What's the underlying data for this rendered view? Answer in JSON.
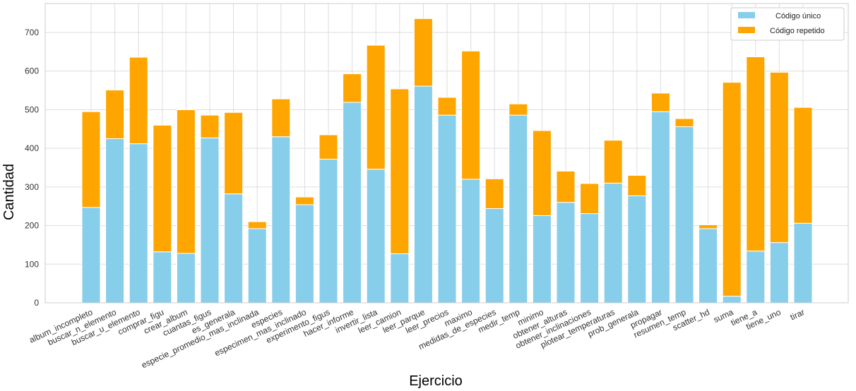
{
  "chart_data": {
    "type": "bar",
    "stacked": true,
    "xlabel": "Ejercicio",
    "ylabel": "Cantidad",
    "ylim": [
      0,
      775
    ],
    "yticks": [
      0,
      100,
      200,
      300,
      400,
      500,
      600,
      700
    ],
    "grid": true,
    "legend_position": "top-right",
    "categories": [
      "album_incompleto",
      "buscar_n_elemento",
      "buscar_u_elemento",
      "comprar_figu",
      "crear_album",
      "cuantas_figus",
      "es_generala",
      "especie_promedio_mas_inclinada",
      "especies",
      "especimen_mas_inclinado",
      "experimento_figus",
      "hacer_informe",
      "invertir_lista",
      "leer_camion",
      "leer_parque",
      "leer_precios",
      "maximo",
      "medidas_de_especies",
      "medir_temp",
      "minimo",
      "obtener_alturas",
      "obtener_inclinaciones",
      "plotear_temperaturas",
      "prob_generala",
      "propagar",
      "resumen_temp",
      "scatter_hd",
      "suma",
      "tiene_a",
      "tiene_uno",
      "tirar"
    ],
    "series": [
      {
        "name": "Código único",
        "color": "#87ceeb",
        "values": [
          247,
          425,
          412,
          132,
          128,
          427,
          282,
          192,
          430,
          254,
          372,
          519,
          346,
          127,
          561,
          486,
          320,
          244,
          486,
          226,
          260,
          231,
          310,
          277,
          495,
          456,
          192,
          17,
          134,
          156,
          206
        ]
      },
      {
        "name": "Código repetido",
        "color": "#ffa500",
        "values": [
          248,
          126,
          224,
          328,
          372,
          59,
          211,
          18,
          98,
          20,
          63,
          74,
          321,
          427,
          175,
          46,
          332,
          77,
          29,
          220,
          81,
          78,
          111,
          53,
          48,
          21,
          10,
          554,
          503,
          441,
          300
        ]
      }
    ]
  }
}
